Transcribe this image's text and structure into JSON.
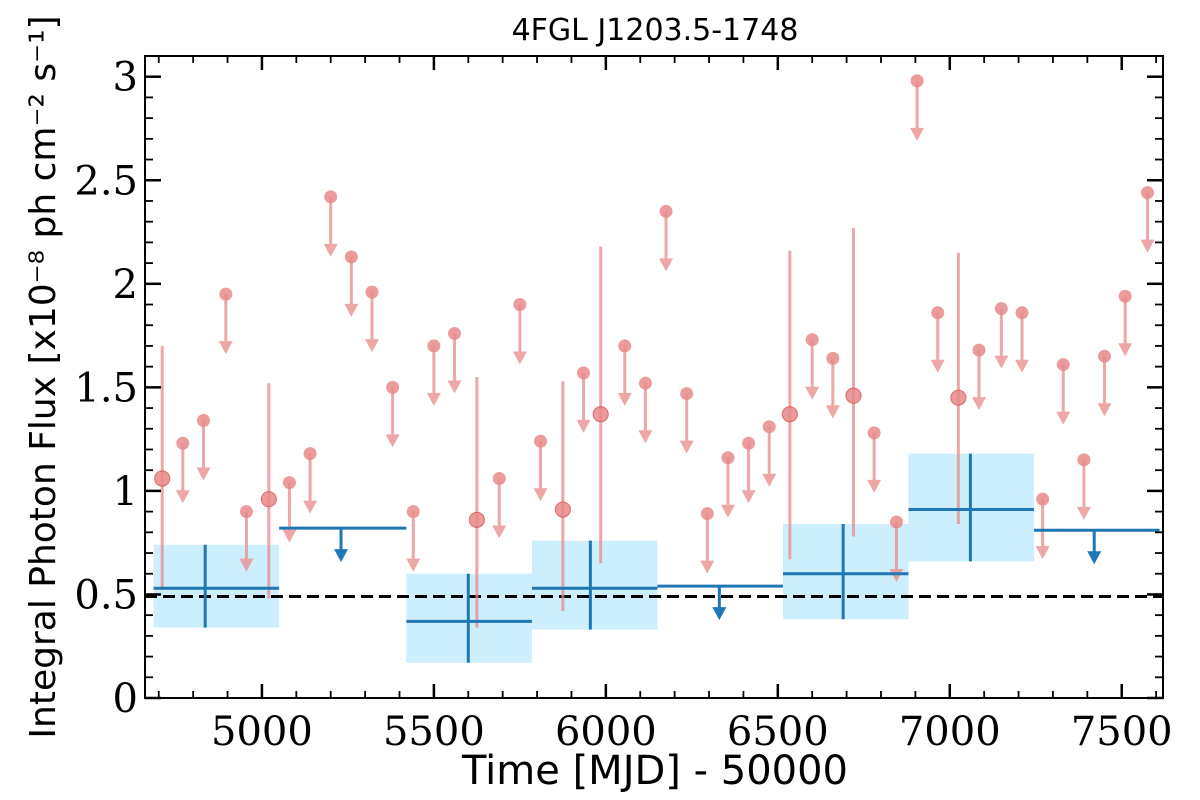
{
  "chart_data": {
    "type": "scatter",
    "title": "4FGL J1203.5-1748",
    "xlabel": "Time [MJD] - 50000",
    "ylabel": "Integral Photon Flux [x10⁻⁸ ph cm⁻² s⁻¹]",
    "xlim": [
      4660,
      7620
    ],
    "ylim": [
      0,
      3.1
    ],
    "x_ticks": [
      5000,
      5500,
      6000,
      6500,
      7000,
      7500
    ],
    "y_ticks": [
      0,
      0.5,
      1,
      1.5,
      2,
      2.5,
      3
    ],
    "y_tick_labels": [
      "0",
      "0.5",
      "1",
      "1.5",
      "2",
      "2.5",
      "3"
    ],
    "baseline": 0.49,
    "colors": {
      "fine_bins": "#e88a8a",
      "coarse_bins": "#1f77b4",
      "coarse_error_band": "#cdeefc",
      "baseline": "#000000"
    },
    "fine_bins": {
      "detections": [
        {
          "x": 4710,
          "y": 1.06,
          "ylo": 0.52,
          "yhi": 1.7
        },
        {
          "x": 5020,
          "y": 0.96,
          "ylo": 0.48,
          "yhi": 1.52
        },
        {
          "x": 5625,
          "y": 0.86,
          "ylo": 0.34,
          "yhi": 1.55
        },
        {
          "x": 5875,
          "y": 0.91,
          "ylo": 0.42,
          "yhi": 1.53
        },
        {
          "x": 5985,
          "y": 1.37,
          "ylo": 0.65,
          "yhi": 2.18
        },
        {
          "x": 6535,
          "y": 1.37,
          "ylo": 0.67,
          "yhi": 2.16
        },
        {
          "x": 6720,
          "y": 1.46,
          "ylo": 0.78,
          "yhi": 2.27
        },
        {
          "x": 7025,
          "y": 1.45,
          "ylo": 0.84,
          "yhi": 2.15
        }
      ],
      "upper_limits": [
        {
          "x": 4770,
          "y": 1.23
        },
        {
          "x": 4830,
          "y": 1.34
        },
        {
          "x": 4895,
          "y": 1.95
        },
        {
          "x": 4955,
          "y": 0.9
        },
        {
          "x": 5080,
          "y": 1.04
        },
        {
          "x": 5140,
          "y": 1.18
        },
        {
          "x": 5200,
          "y": 2.42
        },
        {
          "x": 5260,
          "y": 2.13
        },
        {
          "x": 5320,
          "y": 1.96
        },
        {
          "x": 5380,
          "y": 1.5
        },
        {
          "x": 5440,
          "y": 0.9
        },
        {
          "x": 5500,
          "y": 1.7
        },
        {
          "x": 5560,
          "y": 1.76
        },
        {
          "x": 5690,
          "y": 1.06
        },
        {
          "x": 5750,
          "y": 1.9
        },
        {
          "x": 5810,
          "y": 1.24
        },
        {
          "x": 5935,
          "y": 1.57
        },
        {
          "x": 6055,
          "y": 1.7
        },
        {
          "x": 6115,
          "y": 1.52
        },
        {
          "x": 6175,
          "y": 2.35
        },
        {
          "x": 6235,
          "y": 1.47
        },
        {
          "x": 6295,
          "y": 0.89
        },
        {
          "x": 6355,
          "y": 1.16
        },
        {
          "x": 6415,
          "y": 1.23
        },
        {
          "x": 6475,
          "y": 1.31
        },
        {
          "x": 6600,
          "y": 1.73
        },
        {
          "x": 6660,
          "y": 1.64
        },
        {
          "x": 6780,
          "y": 1.28
        },
        {
          "x": 6845,
          "y": 0.85
        },
        {
          "x": 6905,
          "y": 2.98
        },
        {
          "x": 6965,
          "y": 1.86
        },
        {
          "x": 7085,
          "y": 1.68
        },
        {
          "x": 7150,
          "y": 1.88
        },
        {
          "x": 7210,
          "y": 1.86
        },
        {
          "x": 7270,
          "y": 0.96
        },
        {
          "x": 7330,
          "y": 1.61
        },
        {
          "x": 7390,
          "y": 1.15
        },
        {
          "x": 7450,
          "y": 1.65
        },
        {
          "x": 7510,
          "y": 1.94
        },
        {
          "x": 7575,
          "y": 2.44
        }
      ]
    },
    "coarse_bins": {
      "detections": [
        {
          "x0": 4685,
          "x1": 5050,
          "x": 4835,
          "y": 0.53,
          "ylo": 0.34,
          "yhi": 0.74
        },
        {
          "x0": 5420,
          "x1": 5785,
          "x": 5600,
          "y": 0.37,
          "ylo": 0.17,
          "yhi": 0.6
        },
        {
          "x0": 5785,
          "x1": 6150,
          "x": 5955,
          "y": 0.53,
          "ylo": 0.33,
          "yhi": 0.76
        },
        {
          "x0": 6515,
          "x1": 6880,
          "x": 6690,
          "y": 0.6,
          "ylo": 0.38,
          "yhi": 0.84
        },
        {
          "x0": 6880,
          "x1": 7245,
          "x": 7060,
          "y": 0.91,
          "ylo": 0.66,
          "yhi": 1.18
        }
      ],
      "upper_limits": [
        {
          "x0": 5050,
          "x1": 5420,
          "x": 5230,
          "y": 0.82
        },
        {
          "x0": 6150,
          "x1": 6515,
          "x": 6330,
          "y": 0.54
        },
        {
          "x0": 7245,
          "x1": 7610,
          "x": 7420,
          "y": 0.81
        }
      ]
    }
  }
}
